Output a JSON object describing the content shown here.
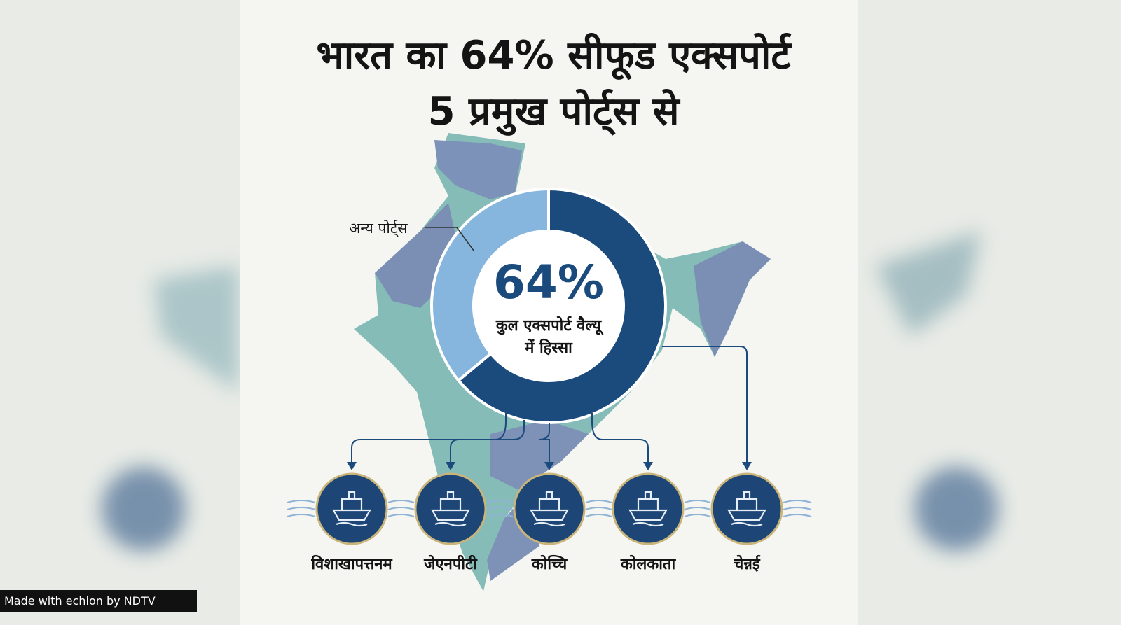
{
  "chart_data": {
    "type": "donut",
    "title": "भारत का 64% सीफूड एक्सपोर्ट 5 प्रमुख पोर्ट्स से",
    "categories": [
      null,
      "अन्य पोर्ट्स"
    ],
    "values": [
      64,
      36
    ],
    "value_labels": [
      "64%",
      null
    ],
    "colors": [
      "#1b4a7d",
      "#86b5de"
    ],
    "center_label": "कुल एक्सपोर्ट वैल्यू में हिस्सा",
    "ports": [
      "विशाखापत्तनम",
      "जेएनपीटी",
      "कोच्चि",
      "कोलकाता",
      "चेन्नई"
    ]
  },
  "footer": "Made with echion by NDTV"
}
